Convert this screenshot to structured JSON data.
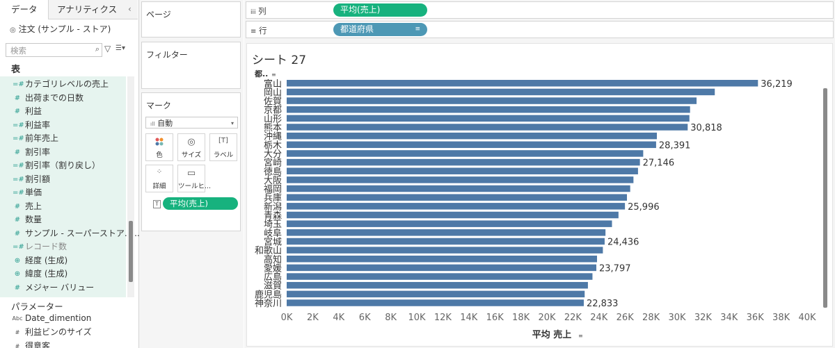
{
  "left_pane": {
    "tab_data": "データ",
    "tab_analytics": "アナリティクス",
    "collapse": "‹",
    "datasource": "注文 (サンプル - ストア)",
    "search_placeholder": "検索",
    "tables_header": "表",
    "fields": [
      {
        "icon": "=#",
        "label": "カテゴリレベルの売上"
      },
      {
        "icon": "#",
        "label": "出荷までの日数"
      },
      {
        "icon": "#",
        "label": "利益"
      },
      {
        "icon": "=#",
        "label": "利益率"
      },
      {
        "icon": "=#",
        "label": "前年売上"
      },
      {
        "icon": "#",
        "label": "割引率"
      },
      {
        "icon": "=#",
        "label": "割引率（割り戻し）"
      },
      {
        "icon": "=#",
        "label": "割引額"
      },
      {
        "icon": "=#",
        "label": "単価"
      },
      {
        "icon": "#",
        "label": "売上"
      },
      {
        "icon": "#",
        "label": "数量"
      },
      {
        "icon": "#",
        "label": "サンプル - スーパーストア.xl..."
      },
      {
        "icon": "=#",
        "label": "レコード数"
      },
      {
        "icon": "⊕",
        "label": "経度 (生成)"
      },
      {
        "icon": "⊕",
        "label": "緯度 (生成)"
      },
      {
        "icon": "#",
        "label": "メジャー バリュー"
      }
    ],
    "params_header": "パラメーター",
    "params": [
      {
        "icon": "Abc",
        "label": "Date_dimention"
      },
      {
        "icon": "#",
        "label": "利益ビンのサイズ"
      },
      {
        "icon": "#",
        "label": "得意客"
      }
    ]
  },
  "cards": {
    "pages_title": "ページ",
    "filters_title": "フィルター",
    "marks_title": "マーク",
    "mark_type": "自動",
    "mark_buttons": [
      {
        "icon": "color-icon",
        "label": "色"
      },
      {
        "icon": "size-icon",
        "label": "サイズ"
      },
      {
        "icon": "label-icon",
        "label": "ラベル"
      },
      {
        "icon": "detail-icon",
        "label": "詳細"
      },
      {
        "icon": "tooltip-icon",
        "label": "ツールヒ..."
      }
    ],
    "mark_pill": "平均(売上)"
  },
  "shelves": {
    "columns_label": "列",
    "columns_pill": "平均(売上)",
    "rows_label": "行",
    "rows_pill": "都道府県"
  },
  "view": {
    "sheet_title": "シート 27"
  },
  "chart_data": {
    "type": "bar",
    "orientation": "horizontal",
    "row_header": "都..",
    "xlabel": "平均 売上",
    "xlim": [
      0,
      40000
    ],
    "xticks": [
      "0K",
      "2K",
      "4K",
      "6K",
      "8K",
      "10K",
      "12K",
      "14K",
      "16K",
      "18K",
      "20K",
      "22K",
      "24K",
      "26K",
      "28K",
      "30K",
      "32K",
      "34K",
      "36K",
      "38K",
      "40K"
    ],
    "bar_color": "#4e79a7",
    "bars": [
      {
        "label": "富山",
        "value": 36219,
        "text": "36,219"
      },
      {
        "label": "岡山",
        "value": 32900,
        "text": ""
      },
      {
        "label": "佐賀",
        "value": 31500,
        "text": ""
      },
      {
        "label": "京都",
        "value": 31000,
        "text": ""
      },
      {
        "label": "山形",
        "value": 30950,
        "text": ""
      },
      {
        "label": "熊本",
        "value": 30818,
        "text": "30,818"
      },
      {
        "label": "沖縄",
        "value": 28450,
        "text": ""
      },
      {
        "label": "栃木",
        "value": 28391,
        "text": "28,391"
      },
      {
        "label": "大分",
        "value": 27400,
        "text": ""
      },
      {
        "label": "宮崎",
        "value": 27146,
        "text": "27,146"
      },
      {
        "label": "徳島",
        "value": 27000,
        "text": ""
      },
      {
        "label": "大阪",
        "value": 26650,
        "text": ""
      },
      {
        "label": "福岡",
        "value": 26400,
        "text": ""
      },
      {
        "label": "兵庫",
        "value": 26150,
        "text": ""
      },
      {
        "label": "新潟",
        "value": 25996,
        "text": "25,996"
      },
      {
        "label": "青森",
        "value": 25500,
        "text": ""
      },
      {
        "label": "埼玉",
        "value": 25000,
        "text": ""
      },
      {
        "label": "岐阜",
        "value": 24500,
        "text": ""
      },
      {
        "label": "宮城",
        "value": 24436,
        "text": "24,436"
      },
      {
        "label": "和歌山",
        "value": 24300,
        "text": ""
      },
      {
        "label": "高知",
        "value": 23850,
        "text": ""
      },
      {
        "label": "愛媛",
        "value": 23797,
        "text": "23,797"
      },
      {
        "label": "広島",
        "value": 23500,
        "text": ""
      },
      {
        "label": "滋賀",
        "value": 23150,
        "text": ""
      },
      {
        "label": "鹿児島",
        "value": 22900,
        "text": ""
      },
      {
        "label": "神奈川",
        "value": 22833,
        "text": "22,833"
      }
    ]
  }
}
